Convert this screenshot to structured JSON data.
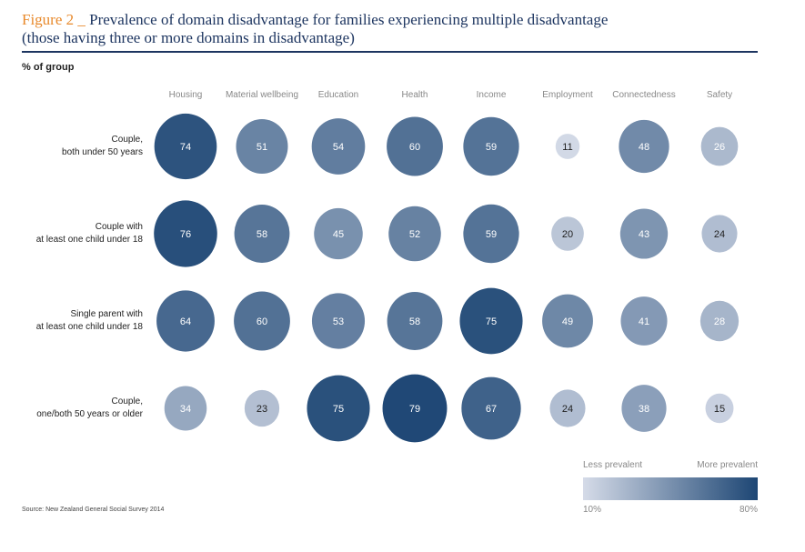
{
  "title": {
    "figure": "Figure 2 _",
    "line1": "Prevalence of domain disadvantage for families experiencing multiple disadvantage",
    "line2": "(those having three or more domains in disadvantage)"
  },
  "unit_label": "% of group",
  "source": "Source: New Zealand General Social Survey 2014",
  "legend": {
    "less": "Less prevalent",
    "more": "More prevalent",
    "min_label": "10%",
    "max_label": "80%",
    "min_color": "#d5dbe8",
    "max_color": "#1d4674"
  },
  "chart_data": {
    "type": "heatmap",
    "title": "Prevalence of domain disadvantage for families experiencing multiple disadvantage (those having three or more domains in disadvantage)",
    "ylabel": "% of group",
    "columns": [
      "Housing",
      "Material wellbeing",
      "Education",
      "Health",
      "Income",
      "Employment",
      "Connectedness",
      "Safety"
    ],
    "rows": [
      {
        "label": [
          "Couple,",
          "both under 50 years"
        ],
        "values": [
          74,
          51,
          54,
          60,
          59,
          11,
          48,
          26
        ]
      },
      {
        "label": [
          "Couple with",
          "at least one child under 18"
        ],
        "values": [
          76,
          58,
          45,
          52,
          59,
          20,
          43,
          24
        ]
      },
      {
        "label": [
          "Single parent with",
          "at least one child under 18"
        ],
        "values": [
          64,
          60,
          53,
          58,
          75,
          49,
          41,
          28
        ]
      },
      {
        "label": [
          "Couple,",
          "one/both 50 years or older"
        ],
        "values": [
          34,
          23,
          75,
          79,
          67,
          24,
          38,
          15
        ]
      }
    ],
    "color_range": [
      10,
      80
    ],
    "encoding": "bubble size and color by value"
  }
}
